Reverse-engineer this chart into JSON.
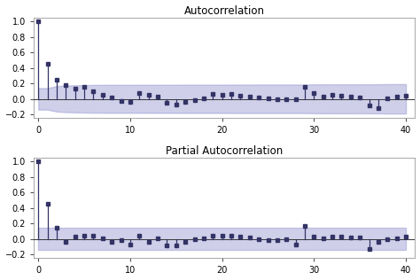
{
  "title_acf": "Autocorrelation",
  "title_pacf": "Partial Autocorrelation",
  "xlim": [
    -0.5,
    41
  ],
  "ylim": [
    -0.25,
    1.05
  ],
  "xticks": [
    0,
    10,
    20,
    30,
    40
  ],
  "yticks": [
    -0.2,
    0.0,
    0.2,
    0.4,
    0.6,
    0.8,
    1.0
  ],
  "acf_values": [
    1.0,
    0.45,
    0.25,
    0.18,
    0.13,
    0.15,
    0.1,
    0.05,
    0.02,
    -0.03,
    -0.04,
    0.07,
    0.05,
    0.03,
    -0.05,
    -0.07,
    -0.04,
    -0.02,
    0.01,
    0.06,
    0.05,
    0.06,
    0.04,
    0.03,
    0.02,
    0.01,
    -0.01,
    0.0,
    -0.01,
    0.15,
    0.07,
    0.03,
    0.05,
    0.04,
    0.03,
    0.02,
    -0.09,
    -0.12,
    0.01,
    0.03,
    0.04
  ],
  "pacf_values": [
    1.0,
    0.45,
    0.14,
    -0.04,
    0.03,
    0.04,
    0.04,
    0.01,
    -0.04,
    -0.02,
    -0.07,
    0.04,
    -0.04,
    0.01,
    -0.08,
    -0.08,
    -0.04,
    0.0,
    0.01,
    0.04,
    0.04,
    0.04,
    0.03,
    0.02,
    0.0,
    -0.02,
    -0.02,
    -0.01,
    -0.07,
    0.17,
    0.03,
    0.01,
    0.03,
    0.03,
    0.02,
    0.02,
    -0.13,
    -0.04,
    0.0,
    0.01,
    0.03
  ],
  "stem_color": "#333366",
  "marker_color": "#333366",
  "conf_color": "#8888cc",
  "conf_alpha": 0.4,
  "marker": "s",
  "marker_size": 2.5,
  "stem_linewidth": 0.9,
  "zero_linewidth": 0.7,
  "zero_color": "#333333",
  "bg_color": "#ffffff",
  "fig_bg": "#ffffff",
  "title_fontsize": 8.5,
  "tick_fontsize": 7,
  "spine_color": "#999999"
}
